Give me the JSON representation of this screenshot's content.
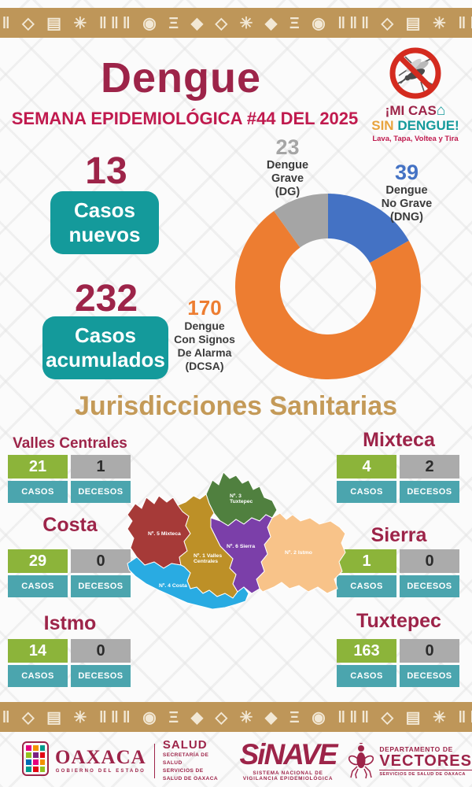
{
  "decor": {
    "border_glyphs": "◆ Ξ ◉ ‖‖‖ ◇ ▤ ✳ ‖‖‖ ◉ Ξ ◆ ◇ ✳ ◆ Ξ ◉ ‖‖‖ ◇ ▤ ✳ ‖‖‖ ◉ Ξ ◆",
    "band_color": "#BE9659"
  },
  "header": {
    "title": "Dengue",
    "subtitle": "SEMANA EPIDEMIOLÓGICA #44 DEL 2025"
  },
  "campaign": {
    "no_mosquito_icon": "no-mosquito-icon",
    "line1": "¡MI CAS",
    "house_icon": "⌂",
    "sin": "SIN",
    "dengue": "DENGUE!",
    "tagline": "Lava, Tapa, Voltea y Tira"
  },
  "stats": {
    "new_cases": {
      "value": "13",
      "label": "Casos nuevos"
    },
    "cumulative_cases": {
      "value": "232",
      "label": "Casos acumulados"
    }
  },
  "chart_data": {
    "type": "pie",
    "subtype": "donut",
    "title": "Distribución de casos de dengue por clasificación, semana 44 de 2025",
    "total": 232,
    "series": [
      {
        "name": "Dengue No Grave (DNG)",
        "value": 39,
        "color": "#4472C4",
        "label_lines": [
          "Dengue",
          "No Grave",
          "(DNG)"
        ]
      },
      {
        "name": "Dengue Con Signos De Alarma (DCSA)",
        "value": 170,
        "color": "#ED7D31",
        "label_lines": [
          "Dengue",
          "Con Signos",
          "De Alarma",
          "(DCSA)"
        ]
      },
      {
        "name": "Dengue Grave (DG)",
        "value": 23,
        "color": "#A5A5A5",
        "label_lines": [
          "Dengue",
          "Grave",
          "(DG)"
        ]
      }
    ],
    "legend_position": "around-labels",
    "start_angle": "top-clockwise"
  },
  "jurisdictions": {
    "heading": "Jurisdicciones Sanitarias",
    "casos_label": "CASOS",
    "decesos_label": "DECESOS",
    "regions": [
      {
        "name": "Valles Centrales",
        "casos": "21",
        "decesos": "1"
      },
      {
        "name": "Mixteca",
        "casos": "4",
        "decesos": "2"
      },
      {
        "name": "Costa",
        "casos": "29",
        "decesos": "0"
      },
      {
        "name": "Sierra",
        "casos": "1",
        "decesos": "0"
      },
      {
        "name": "Istmo",
        "casos": "14",
        "decesos": "0"
      },
      {
        "name": "Tuxtepec",
        "casos": "163",
        "decesos": "0"
      }
    ],
    "colors": {
      "casos_bg": "#8CB43A",
      "decesos_bg": "#ABABAB",
      "label_bg": "#4BA5AE"
    }
  },
  "map": {
    "name": "Oaxaca jurisdicciones sanitarias",
    "regions": [
      {
        "label_lines": [
          "Nº. 5 Mixteca"
        ],
        "color": "#A63A38"
      },
      {
        "label_lines": [
          "Nº. 3",
          "Tuxtepec"
        ],
        "color": "#50803F"
      },
      {
        "label_lines": [
          "Nº. 1 Valles",
          "Centrales"
        ],
        "color": "#BD9027"
      },
      {
        "label_lines": [
          "Nº. 6 Sierra"
        ],
        "color": "#7B3FA9"
      },
      {
        "label_lines": [
          "Nº. 2 Istmo"
        ],
        "color": "#F8C389"
      },
      {
        "label_lines": [
          "Nº. 4 Costa"
        ],
        "color": "#29ABE2"
      }
    ]
  },
  "footer": {
    "oaxaca": {
      "name": "OAXACA",
      "tagline": "GOBIERNO DEL ESTADO"
    },
    "salud": {
      "title": "SALUD",
      "line1": "SECRETARÍA DE SALUD",
      "line2": "SERVICIOS DE SALUD DE OAXACA"
    },
    "sinave": {
      "name": "SiNAVE",
      "tagline": "SISTEMA NACIONAL DE VIGILANCIA EPIDEMIOLÓGICA"
    },
    "vectores": {
      "mosquito_icon": "mosquito-icon",
      "line1": "DEPARTAMENTO DE",
      "line2": "VECTORES",
      "line3": "SERVICIOS DE SALUD DE OAXACA"
    }
  },
  "theme_colors": {
    "maroon": "#9D2449",
    "crimson": "#C01A4E",
    "teal": "#149A9B",
    "teal_light": "#4BA5AE",
    "gold_heading": "#C49A58",
    "band_tan": "#BE9659",
    "orange": "#ED7D31",
    "blue": "#4472C4",
    "gray": "#A5A5A5"
  }
}
